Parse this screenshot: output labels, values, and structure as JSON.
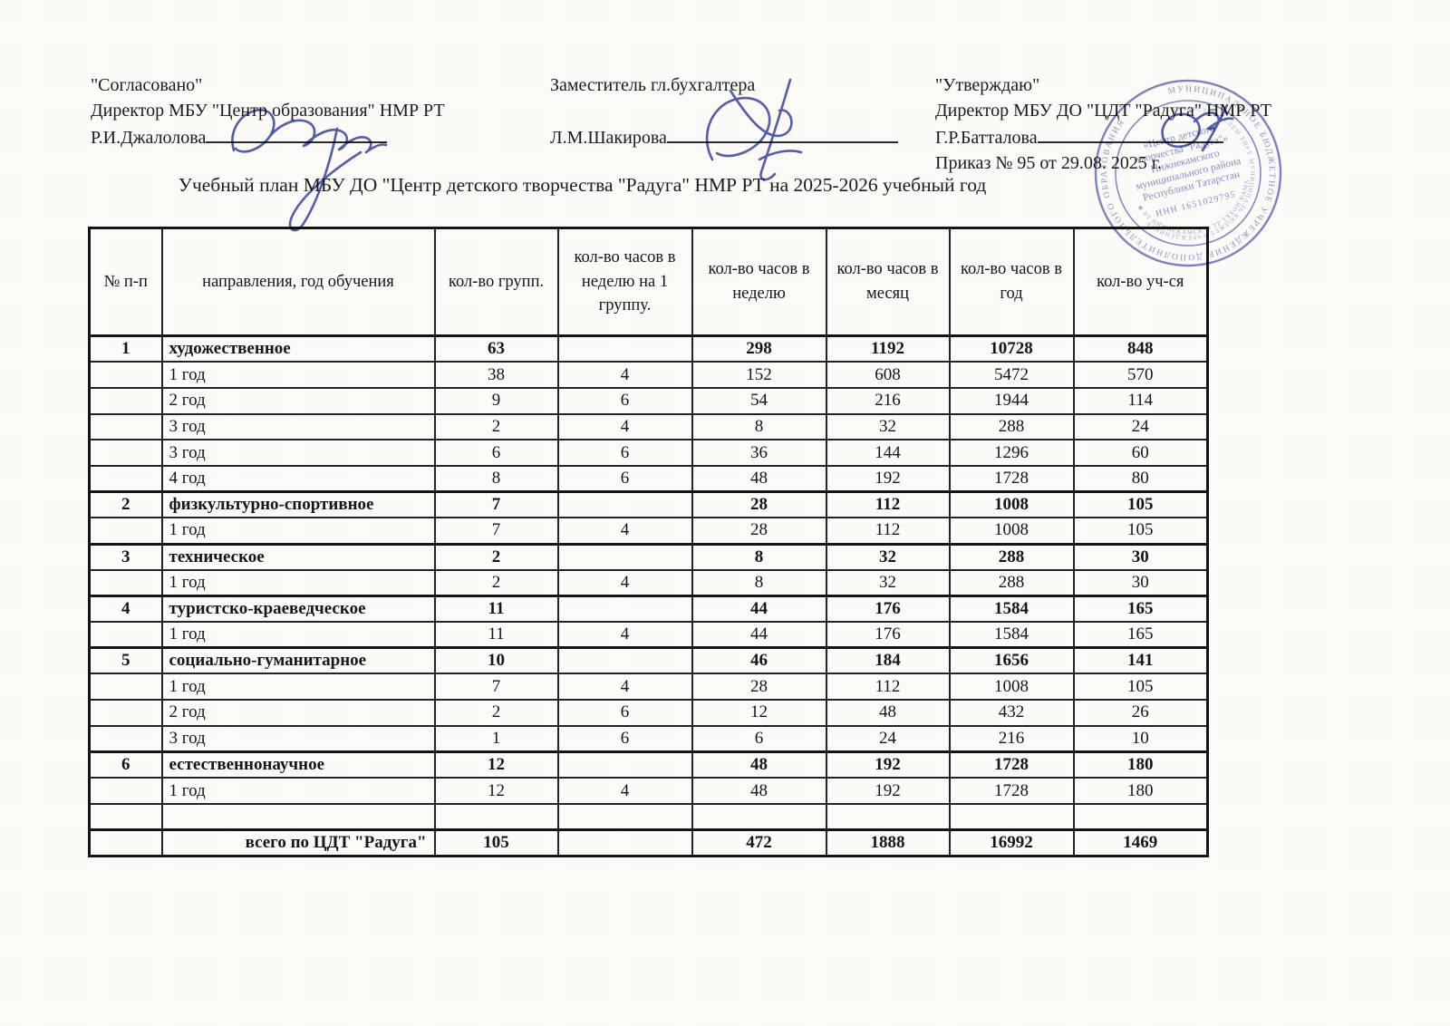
{
  "header": {
    "left": {
      "line1": "\"Согласовано\"",
      "line2": "Директор МБУ \"Центр образования\" НМР РТ",
      "name": "Р.И.Джалолова"
    },
    "middle": {
      "line1": "Заместитель гл.бухгалтера",
      "name": "Л.М.Шакирова"
    },
    "right": {
      "line1": "\"Утверждаю\"",
      "line2": "Директор МБУ ДО \"ЦДТ \"Радуга\" НМР РТ",
      "name": "Г.Р.Батталова",
      "line4": "Приказ № 95 от 29.08. 2025 г."
    }
  },
  "title": "Учебный план МБУ ДО \"Центр детского творчества \"Радуга\" НМР РТ на 2025-2026 учебный год",
  "table": {
    "columns": [
      "№ п-п",
      "направления, год обучения",
      "кол-во групп.",
      "кол-во часов в неделю на 1 группу.",
      "кол-во часов в неделю",
      "кол-во часов в месяц",
      "кол-во часов в год",
      "кол-во уч-ся"
    ],
    "column_keys": [
      "num",
      "direction",
      "groups",
      "hours-per-group",
      "hours-week",
      "hours-month",
      "hours-year",
      "students"
    ],
    "rows": [
      {
        "type": "section",
        "cells": [
          "1",
          "художественное",
          "63",
          "",
          "298",
          "1192",
          "10728",
          "848"
        ]
      },
      {
        "type": "year",
        "cells": [
          "",
          "1 год",
          "38",
          "4",
          "152",
          "608",
          "5472",
          "570"
        ]
      },
      {
        "type": "year",
        "cells": [
          "",
          "2 год",
          "9",
          "6",
          "54",
          "216",
          "1944",
          "114"
        ]
      },
      {
        "type": "year",
        "cells": [
          "",
          "3 год",
          "2",
          "4",
          "8",
          "32",
          "288",
          "24"
        ]
      },
      {
        "type": "year",
        "cells": [
          "",
          "3 год",
          "6",
          "6",
          "36",
          "144",
          "1296",
          "60"
        ]
      },
      {
        "type": "year",
        "cells": [
          "",
          "4 год",
          "8",
          "6",
          "48",
          "192",
          "1728",
          "80"
        ]
      },
      {
        "type": "section",
        "cells": [
          "2",
          "физкультурно-спортивное",
          "7",
          "",
          "28",
          "112",
          "1008",
          "105"
        ]
      },
      {
        "type": "year",
        "cells": [
          "",
          "1 год",
          "7",
          "4",
          "28",
          "112",
          "1008",
          "105"
        ]
      },
      {
        "type": "section",
        "cells": [
          "3",
          "техническое",
          "2",
          "",
          "8",
          "32",
          "288",
          "30"
        ]
      },
      {
        "type": "year",
        "cells": [
          "",
          "1 год",
          "2",
          "4",
          "8",
          "32",
          "288",
          "30"
        ]
      },
      {
        "type": "section",
        "cells": [
          "4",
          "туристско-краеведческое",
          "11",
          "",
          "44",
          "176",
          "1584",
          "165"
        ]
      },
      {
        "type": "year",
        "cells": [
          "",
          "1 год",
          "11",
          "4",
          "44",
          "176",
          "1584",
          "165"
        ]
      },
      {
        "type": "section",
        "cells": [
          "5",
          "социально-гуманитарное",
          "10",
          "",
          "46",
          "184",
          "1656",
          "141"
        ]
      },
      {
        "type": "year",
        "cells": [
          "",
          "1 год",
          "7",
          "4",
          "28",
          "112",
          "1008",
          "105"
        ]
      },
      {
        "type": "year",
        "cells": [
          "",
          "2 год",
          "2",
          "6",
          "12",
          "48",
          "432",
          "26"
        ]
      },
      {
        "type": "year",
        "cells": [
          "",
          "3 год",
          "1",
          "6",
          "6",
          "24",
          "216",
          "10"
        ]
      },
      {
        "type": "section",
        "cells": [
          "6",
          "естественнонаучное",
          "12",
          "",
          "48",
          "192",
          "1728",
          "180"
        ]
      },
      {
        "type": "year",
        "cells": [
          "",
          "1 год",
          "12",
          "4",
          "48",
          "192",
          "1728",
          "180"
        ]
      },
      {
        "type": "empty",
        "cells": [
          "",
          "",
          "",
          "",
          "",
          "",
          "",
          ""
        ]
      },
      {
        "type": "total",
        "cells": [
          "",
          "всего по ЦДТ \"Радуга\"",
          "105",
          "",
          "472",
          "1888",
          "16992",
          "1469"
        ]
      }
    ]
  },
  "stamp": {
    "ring_text": "МУНИЦИПАЛЬНОЕ БЮДЖЕТНОЕ УЧРЕЖДЕНИЕ ДОПОЛНИТЕЛЬНОГО ОБРАЗОВАНИЯ",
    "ring_text2": "ТАТАРСТАН БЕЛЕМ БИРҮ МУНИЦИПАЛЬ БЮДЖЕТ УЧРЕЖДЕНИЕСЕ",
    "center_lines": [
      "«Центр детского",
      "творчества \"Радуга\"»",
      "Нижнекамского",
      "муниципального района",
      "Республики Татарстан"
    ],
    "inn": "ИНН 1651029795",
    "bottom_arc": "✱  РТ НИЖНЕКАМСК  ✱  ТР ТҮБӘН КАМА",
    "color": "#4550ac"
  },
  "ink_color": "#3c4ba4"
}
